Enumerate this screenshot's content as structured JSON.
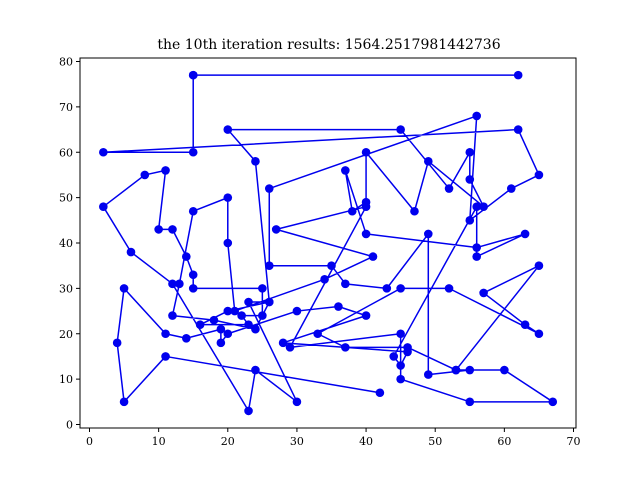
{
  "chart_data": {
    "type": "line",
    "title": "the 10th iteration results: 1564.2517981442736",
    "xlabel": "",
    "ylabel": "",
    "xlim": [
      0,
      70
    ],
    "ylim": [
      0,
      80
    ],
    "xticks": [
      "0",
      "10",
      "20",
      "30",
      "40",
      "50",
      "60",
      "70"
    ],
    "yticks": [
      "0",
      "10",
      "20",
      "30",
      "40",
      "50",
      "60",
      "70",
      "80"
    ],
    "grid": false,
    "series": [
      {
        "color": "#0000ee",
        "marker": "circle",
        "points": [
          [
            15,
            77
          ],
          [
            62,
            77
          ],
          [
            15,
            77
          ],
          [
            15,
            60
          ],
          [
            2,
            60
          ],
          [
            62,
            65
          ],
          [
            65,
            55
          ],
          [
            61,
            52
          ],
          [
            55,
            45
          ],
          [
            56,
            68
          ],
          [
            26,
            52
          ],
          [
            26,
            35
          ],
          [
            35,
            35
          ],
          [
            37,
            31
          ],
          [
            43,
            30
          ],
          [
            49,
            42
          ],
          [
            49,
            11
          ],
          [
            55,
            12
          ],
          [
            53,
            12
          ],
          [
            46,
            17
          ],
          [
            37,
            17
          ],
          [
            33,
            20
          ],
          [
            45,
            30
          ],
          [
            52,
            30
          ],
          [
            65,
            20
          ],
          [
            63,
            22
          ],
          [
            57,
            29
          ],
          [
            65,
            35
          ],
          [
            53,
            12
          ],
          [
            60,
            12
          ],
          [
            67,
            5
          ],
          [
            55,
            5
          ],
          [
            45,
            10
          ],
          [
            45,
            20
          ],
          [
            29,
            17
          ],
          [
            40,
            48
          ],
          [
            27,
            43
          ],
          [
            41,
            37
          ],
          [
            34,
            32
          ],
          [
            21,
            25
          ],
          [
            20,
            40
          ],
          [
            20,
            50
          ],
          [
            15,
            47
          ],
          [
            13,
            31
          ],
          [
            12,
            24
          ],
          [
            18,
            23
          ],
          [
            24,
            21
          ],
          [
            26,
            27
          ],
          [
            20,
            25
          ],
          [
            16,
            22
          ],
          [
            23,
            22
          ],
          [
            22,
            24
          ],
          [
            25,
            24
          ],
          [
            25,
            30
          ],
          [
            15,
            30
          ],
          [
            15,
            33
          ],
          [
            14,
            37
          ],
          [
            12,
            43
          ],
          [
            10,
            43
          ],
          [
            11,
            56
          ],
          [
            8,
            55
          ],
          [
            2,
            48
          ],
          [
            6,
            38
          ],
          [
            12,
            31
          ],
          [
            23,
            3
          ],
          [
            24,
            12
          ],
          [
            30,
            5
          ],
          [
            23,
            27
          ],
          [
            26,
            27
          ],
          [
            24,
            58
          ],
          [
            20,
            65
          ],
          [
            45,
            65
          ],
          [
            52,
            52
          ],
          [
            55,
            60
          ],
          [
            55,
            54
          ],
          [
            57,
            48
          ],
          [
            49,
            58
          ],
          [
            47,
            47
          ],
          [
            40,
            60
          ],
          [
            40,
            49
          ],
          [
            38,
            47
          ],
          [
            37,
            56
          ],
          [
            40,
            42
          ],
          [
            56,
            39
          ],
          [
            63,
            42
          ],
          [
            56,
            37
          ],
          [
            56,
            48
          ],
          [
            44,
            15
          ],
          [
            45,
            13
          ],
          [
            46,
            16
          ],
          [
            28,
            18
          ],
          [
            40,
            24
          ],
          [
            36,
            26
          ],
          [
            30,
            25
          ],
          [
            20,
            20
          ],
          [
            19,
            18
          ],
          [
            19,
            21
          ],
          [
            14,
            19
          ],
          [
            11,
            20
          ],
          [
            5,
            30
          ],
          [
            4,
            18
          ],
          [
            5,
            5
          ],
          [
            11,
            15
          ],
          [
            42,
            7
          ]
        ]
      }
    ]
  }
}
